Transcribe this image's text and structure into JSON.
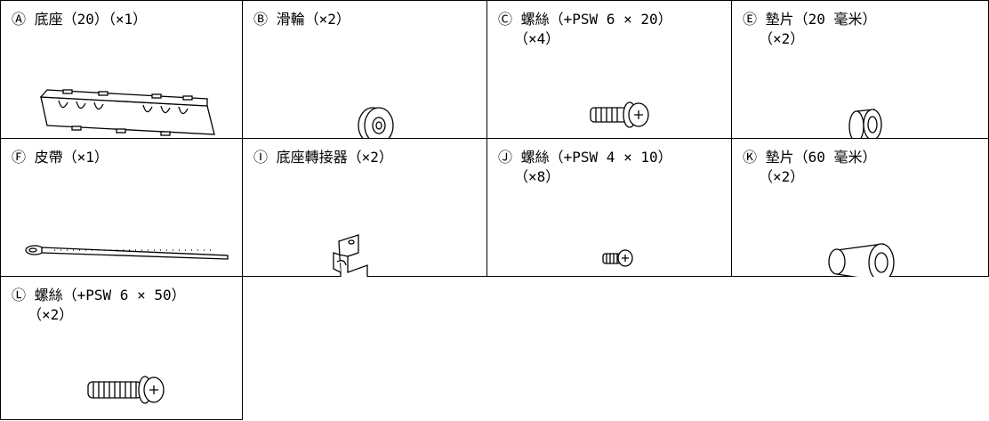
{
  "parts": [
    {
      "label": [
        "Ⓐ 底座（20）（×1）"
      ]
    },
    {
      "label": [
        "Ⓑ 滑輪（×2）"
      ]
    },
    {
      "label": [
        "Ⓒ 螺絲（+PSW 6 × 20）",
        "（×4）"
      ]
    },
    {
      "label": [
        "Ⓔ 墊片（20 毫米）",
        "（×2）"
      ]
    },
    {
      "label": [
        "Ⓕ 皮帶（×1）"
      ]
    },
    {
      "label": [
        "Ⓘ 底座轉接器（×2）"
      ]
    },
    {
      "label": [
        "Ⓙ 螺絲（+PSW 4 × 10）",
        "（×8）"
      ]
    },
    {
      "label": [
        "Ⓚ 墊片（60 毫米）",
        "（×2）"
      ]
    },
    {
      "label": [
        "Ⓛ 螺絲（+PSW 6 × 50）",
        "（×2）"
      ]
    }
  ]
}
